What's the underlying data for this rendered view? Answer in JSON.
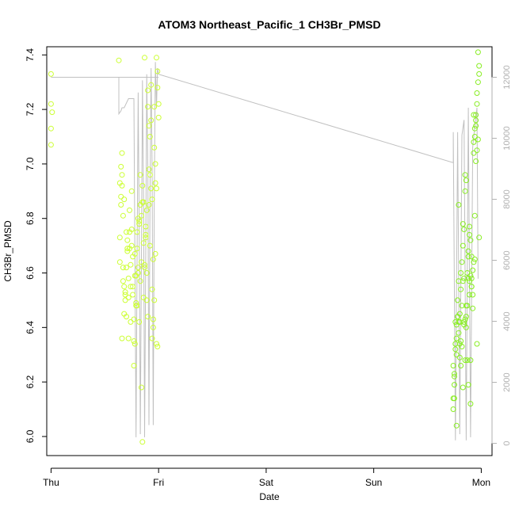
{
  "chart_data": {
    "type": "scatter",
    "title": "ATOM3 Northeast_Pacific_1 CH3Br_PMSD",
    "xlabel": "Date",
    "ylabel": "CH3Br_PMSD",
    "xlim": [
      -0.04,
      4.1
    ],
    "ylim": [
      5.93,
      7.43
    ],
    "y2lim": [
      -400,
      13000
    ],
    "x_ticks": [
      {
        "v": 0,
        "label": "Thu"
      },
      {
        "v": 1,
        "label": "Fri"
      },
      {
        "v": 2,
        "label": "Sat"
      },
      {
        "v": 3,
        "label": "Sun"
      },
      {
        "v": 4,
        "label": "Mon"
      }
    ],
    "y_ticks": [
      {
        "v": 6.0,
        "label": "6.0"
      },
      {
        "v": 6.2,
        "label": "6.2"
      },
      {
        "v": 6.4,
        "label": "6.4"
      },
      {
        "v": 6.6,
        "label": "6.6"
      },
      {
        "v": 6.8,
        "label": "6.8"
      },
      {
        "v": 7.0,
        "label": "7.0"
      },
      {
        "v": 7.2,
        "label": "7.2"
      },
      {
        "v": 7.4,
        "label": "7.4"
      }
    ],
    "y2_ticks": [
      {
        "v": 0,
        "label": "0"
      },
      {
        "v": 2000,
        "label": "2000"
      },
      {
        "v": 4000,
        "label": "4000"
      },
      {
        "v": 6000,
        "label": "6000"
      },
      {
        "v": 8000,
        "label": "8000"
      },
      {
        "v": 10000,
        "label": "10000"
      },
      {
        "v": 12000,
        "label": "12000"
      }
    ],
    "grid": false,
    "colors": {
      "points_early": "#ccff33",
      "points_late": "#88ee22",
      "altitude_line": "#c0c0c0",
      "axis": "#000000",
      "right_axis": "#b0b0b0"
    },
    "series": [
      {
        "marker": "open-circle",
        "x": [
          0.0,
          0.0,
          0.01,
          0.0,
          0.0,
          0.63,
          0.64,
          0.64,
          0.65,
          0.65,
          0.65,
          0.66,
          0.66,
          0.67,
          0.67,
          0.66,
          0.67,
          0.68,
          0.68,
          0.69,
          0.69,
          0.7,
          0.7,
          0.71,
          0.71,
          0.72,
          0.72,
          0.73,
          0.73,
          0.74,
          0.74,
          0.75,
          0.75,
          0.76,
          0.76,
          0.77,
          0.77,
          0.78,
          0.78,
          0.79,
          0.79,
          0.8,
          0.8,
          0.81,
          0.81,
          0.82,
          0.82,
          0.83,
          0.83,
          0.84,
          0.84,
          0.85,
          0.85,
          0.86,
          0.86,
          0.87,
          0.87,
          0.88,
          0.88,
          0.89,
          0.89,
          0.9,
          0.9,
          0.91,
          0.91,
          0.92,
          0.92,
          0.93,
          0.93,
          0.94,
          0.94,
          0.95,
          0.95,
          0.96,
          0.96,
          0.97,
          0.97,
          0.98,
          0.98,
          0.99,
          0.99,
          1.0,
          1.0,
          0.66,
          0.68,
          0.7,
          0.72,
          0.74,
          0.77,
          0.8,
          0.84,
          0.87,
          0.91,
          0.95,
          0.98,
          0.83,
          0.86,
          0.89,
          0.93,
          0.96,
          0.69,
          0.73,
          0.78,
          0.82,
          0.88,
          0.92,
          0.97,
          0.64,
          0.71,
          0.76,
          0.81,
          0.85,
          0.9,
          0.94,
          0.99,
          0.75,
          0.79
        ],
        "y": [
          7.33,
          7.22,
          7.19,
          7.13,
          7.07,
          7.38,
          6.64,
          6.93,
          6.99,
          6.85,
          6.88,
          6.96,
          6.92,
          6.81,
          6.62,
          7.04,
          6.57,
          6.55,
          6.87,
          6.52,
          6.5,
          6.62,
          6.75,
          6.68,
          6.72,
          6.51,
          6.36,
          6.83,
          6.75,
          6.55,
          6.42,
          6.9,
          6.7,
          6.66,
          6.52,
          6.43,
          6.26,
          6.34,
          6.67,
          6.59,
          6.49,
          6.48,
          6.75,
          6.8,
          6.62,
          6.79,
          6.42,
          6.85,
          6.57,
          6.64,
          6.18,
          6.92,
          6.86,
          6.71,
          6.51,
          7.39,
          6.63,
          6.73,
          6.77,
          6.6,
          6.5,
          7.27,
          7.21,
          6.98,
          7.14,
          7.1,
          6.96,
          7.16,
          7.29,
          6.87,
          6.54,
          6.43,
          6.4,
          7.21,
          7.06,
          6.93,
          7.0,
          6.91,
          7.39,
          7.34,
          7.28,
          7.22,
          7.17,
          6.36,
          6.45,
          6.44,
          6.58,
          6.63,
          6.35,
          6.69,
          6.81,
          6.62,
          6.85,
          6.65,
          6.34,
          6.96,
          6.86,
          6.83,
          6.91,
          6.5,
          6.53,
          6.69,
          6.59,
          6.78,
          6.74,
          6.7,
          6.67,
          6.73,
          6.69,
          6.55,
          6.6,
          5.98,
          6.44,
          6.36,
          6.33,
          6.76,
          6.48
        ]
      },
      {
        "marker": "open-circle",
        "x": [
          3.74,
          3.74,
          3.75,
          3.75,
          3.76,
          3.76,
          3.77,
          3.77,
          3.78,
          3.78,
          3.79,
          3.79,
          3.8,
          3.8,
          3.81,
          3.81,
          3.82,
          3.82,
          3.83,
          3.83,
          3.84,
          3.84,
          3.85,
          3.85,
          3.86,
          3.86,
          3.87,
          3.87,
          3.88,
          3.88,
          3.89,
          3.89,
          3.9,
          3.9,
          3.91,
          3.91,
          3.92,
          3.92,
          3.93,
          3.93,
          3.94,
          3.94,
          3.95,
          3.95,
          3.96,
          3.96,
          3.97,
          3.97,
          3.98,
          3.98,
          3.75,
          3.77,
          3.79,
          3.81,
          3.83,
          3.85,
          3.87,
          3.89,
          3.91,
          3.93,
          3.95,
          3.97,
          3.76,
          3.78,
          3.8,
          3.82,
          3.84,
          3.86,
          3.88,
          3.9,
          3.92,
          3.94,
          3.96,
          3.74,
          3.79,
          3.84,
          3.89,
          3.94,
          3.81,
          3.86,
          3.91,
          3.96,
          3.98,
          3.77,
          3.83,
          3.88,
          3.93,
          3.75,
          3.8,
          3.85,
          3.9,
          3.95
        ],
        "y": [
          6.14,
          6.26,
          6.22,
          6.19,
          6.34,
          6.32,
          6.36,
          6.41,
          6.44,
          6.5,
          6.38,
          6.57,
          6.45,
          6.42,
          6.54,
          6.6,
          6.48,
          6.64,
          6.7,
          6.78,
          6.76,
          6.58,
          6.96,
          6.9,
          6.94,
          6.44,
          6.48,
          6.6,
          6.66,
          6.68,
          6.74,
          6.77,
          6.72,
          6.59,
          6.66,
          6.58,
          6.52,
          6.61,
          7.04,
          7.08,
          7.13,
          7.1,
          7.16,
          7.18,
          7.22,
          7.26,
          7.3,
          7.41,
          7.36,
          7.33,
          6.23,
          6.3,
          6.42,
          6.35,
          6.18,
          6.43,
          6.28,
          6.52,
          6.55,
          6.64,
          7.01,
          7.09,
          6.42,
          6.44,
          6.29,
          6.33,
          6.41,
          6.48,
          6.19,
          6.12,
          6.47,
          6.65,
          7.05,
          6.1,
          6.85,
          6.42,
          6.57,
          6.81,
          6.26,
          6.4,
          6.55,
          6.34,
          6.73,
          6.04,
          6.57,
          6.58,
          7.18,
          6.14,
          6.34,
          6.28,
          6.28,
          7.14
        ]
      }
    ],
    "altitude_line": {
      "right_axis": true,
      "x": [
        0.0,
        1.0,
        0.97,
        0.96,
        0.95,
        0.94,
        0.93,
        0.92,
        0.91,
        0.9,
        0.89,
        0.88,
        0.87,
        0.86,
        0.85,
        0.84,
        0.83,
        0.82,
        0.81,
        0.8,
        0.79,
        0.78,
        0.77,
        0.76,
        0.75,
        0.74,
        0.73,
        0.72,
        0.71,
        0.7,
        0.69,
        0.68,
        0.67,
        0.66,
        0.65,
        0.64,
        0.63,
        0.63,
        0.65,
        0.66,
        0.67,
        0.68,
        0.72,
        0.74,
        0.77,
        0.78,
        0.79,
        0.8,
        0.81,
        0.82,
        0.83,
        0.84,
        0.85,
        0.86,
        0.87,
        0.88,
        0.89,
        0.9,
        0.91,
        0.92,
        0.93,
        0.94,
        0.95,
        0.96,
        0.97,
        0.98,
        0.99,
        1.0,
        3.74,
        3.74,
        3.76,
        3.78,
        3.8,
        3.82,
        3.84,
        3.86,
        3.88,
        3.9,
        3.92,
        3.94,
        3.96,
        3.97
      ],
      "y": [
        12000,
        12000,
        12000,
        12000,
        12000,
        12000,
        12000,
        12000,
        12000,
        12000,
        12000,
        12000,
        12000,
        12000,
        12000,
        12000,
        12000,
        12000,
        12000,
        12000,
        12000,
        12000,
        12000,
        12000,
        12000,
        12000,
        12000,
        12000,
        12000,
        12000,
        12000,
        12000,
        12000,
        12000,
        12000,
        12000,
        12000,
        10800,
        10900,
        11000,
        11000,
        11000,
        11300,
        11300,
        11300,
        6000,
        200,
        6000,
        11500,
        7000,
        300,
        6000,
        11900,
        8000,
        200,
        6000,
        12100,
        9000,
        600,
        8000,
        12300,
        9000,
        600,
        8000,
        12500,
        11000,
        12300,
        12100,
        9200,
        10200,
        100,
        10200,
        300,
        10100,
        10600,
        100,
        11000,
        200,
        9700,
        10400,
        11000,
        5400
      ]
    }
  }
}
